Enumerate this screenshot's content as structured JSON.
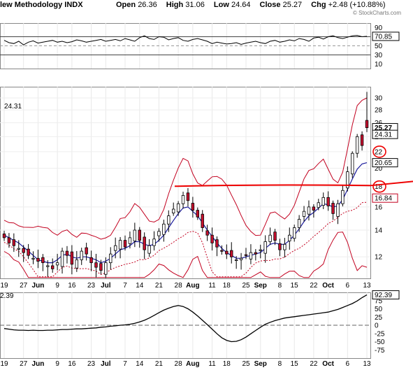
{
  "header": {
    "name": "lew Methodology INDX",
    "open_label": "Open",
    "open": "26.36",
    "high_label": "High",
    "high": "31.06",
    "low_label": "Low",
    "low": "24.64",
    "close_label": "Close",
    "close": "25.27",
    "chg_label": "Chg",
    "chg": "+2.48 (+10.88%)"
  },
  "brand": "© StockCharts.com",
  "chart_data": [
    {
      "type": "line",
      "panel": "RSI",
      "y_ticks": [
        10,
        30,
        50,
        70,
        90
      ],
      "ylim": [
        0,
        100
      ],
      "value_label": "70.85",
      "reference_lines": [
        30,
        50,
        70
      ],
      "y": [
        62,
        57,
        55,
        60,
        52,
        58,
        61,
        56,
        58,
        60,
        62,
        58,
        60,
        57,
        59,
        63,
        61,
        58,
        60,
        62,
        64,
        60,
        62,
        64,
        61,
        66,
        63,
        60,
        68,
        72,
        66,
        64,
        70,
        69,
        63,
        66,
        68,
        62,
        60,
        64,
        66,
        63,
        60,
        55,
        58,
        56,
        54,
        55,
        57,
        53,
        56,
        58,
        60,
        57,
        55,
        60,
        62,
        58,
        60,
        63,
        61,
        66,
        64,
        60,
        67,
        69,
        65,
        70,
        72,
        68,
        66,
        69,
        72,
        73,
        70,
        71
      ]
    },
    {
      "type": "candlestick",
      "panel": "Price",
      "y_ticks": [
        12,
        14,
        16,
        18,
        20,
        22,
        24,
        26,
        28,
        30
      ],
      "ylim": [
        10.6,
        32
      ],
      "price_labels": [
        "25.27",
        "24.31",
        "20.65",
        "16.84"
      ],
      "left_label": "24.31",
      "annotation_levels": [
        22,
        18
      ],
      "trendline": 18.1,
      "x_ticks": [
        "19",
        "27",
        "Jun",
        "9",
        "16",
        "23",
        "Jul",
        "7",
        "14",
        "21",
        "28",
        "Aug",
        "11",
        "18",
        "25",
        "Sep",
        "8",
        "15",
        "22",
        "Oct",
        "6",
        "13"
      ],
      "close": [
        13.4,
        13.0,
        12.8,
        12.6,
        12.3,
        12.1,
        11.9,
        11.7,
        11.6,
        11.4,
        11.2,
        11.6,
        12.4,
        12.1,
        11.5,
        11.8,
        12.4,
        12.2,
        11.6,
        11.3,
        11.1,
        11.6,
        12.2,
        12.8,
        13.2,
        12.7,
        13.4,
        14.0,
        13.2,
        12.5,
        12.8,
        13.3,
        13.9,
        14.5,
        15.2,
        15.8,
        16.3,
        17.1,
        16.6,
        15.7,
        15.1,
        14.2,
        13.6,
        13.0,
        12.7,
        12.4,
        12.2,
        12.0,
        11.8,
        11.9,
        12.1,
        12.3,
        12.2,
        12.5,
        13.1,
        13.6,
        13.2,
        12.5,
        12.9,
        13.6,
        14.2,
        14.9,
        15.6,
        16.0,
        15.7,
        16.4,
        16.9,
        16.1,
        15.4,
        16.3,
        17.6,
        19.6,
        21.8,
        24.0,
        22.8,
        25.27
      ],
      "sma": [
        13.6,
        13.4,
        13.2,
        13.0,
        12.7,
        12.4,
        12.1,
        11.8,
        11.7,
        11.6,
        11.6,
        11.8,
        12.1,
        12.2,
        12.0,
        11.9,
        12.0,
        12.0,
        11.9,
        11.8,
        11.6,
        11.7,
        11.9,
        12.2,
        12.5,
        12.6,
        12.8,
        13.1,
        13.1,
        12.9,
        12.8,
        12.9,
        13.2,
        13.6,
        14.2,
        14.8,
        15.4,
        15.9,
        16.0,
        15.6,
        15.2,
        14.6,
        14.0,
        13.5,
        13.0,
        12.6,
        12.3,
        12.1,
        11.9,
        11.9,
        12.0,
        12.1,
        12.2,
        12.3,
        12.6,
        12.9,
        13.0,
        12.9,
        12.9,
        13.2,
        13.6,
        14.1,
        14.7,
        15.2,
        15.5,
        15.9,
        16.3,
        16.2,
        16.0,
        16.1,
        16.7,
        17.7,
        18.8,
        19.9,
        20.5,
        20.65
      ]
    },
    {
      "type": "line",
      "panel": "CCI",
      "y_ticks": [
        -75,
        -50,
        -25,
        0,
        25,
        50,
        75
      ],
      "ylim": [
        -100,
        100
      ],
      "left_label": "2.39",
      "value_label": "92.39",
      "y": [
        -10,
        -12,
        -14,
        -15,
        -15,
        -16,
        -15,
        -16,
        -16,
        -15,
        -15,
        -14,
        -13,
        -13,
        -12,
        -11,
        -11,
        -10,
        -9,
        -8,
        -6,
        -5,
        -3,
        -2,
        0,
        1,
        3,
        6,
        10,
        15,
        22,
        30,
        38,
        46,
        52,
        57,
        60,
        57,
        50,
        40,
        28,
        15,
        2,
        -12,
        -26,
        -38,
        -46,
        -50,
        -49,
        -44,
        -36,
        -26,
        -16,
        -6,
        3,
        9,
        14,
        18,
        22,
        24,
        26,
        28,
        30,
        32,
        34,
        36,
        38,
        40,
        44,
        48,
        54,
        60,
        66,
        74,
        84,
        92.39
      ]
    }
  ]
}
